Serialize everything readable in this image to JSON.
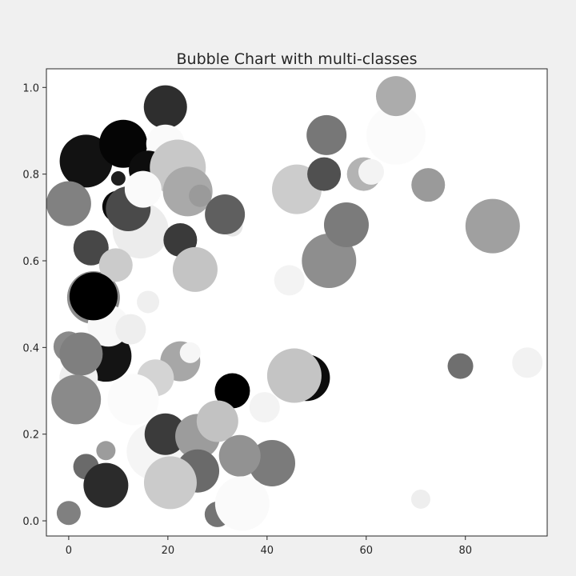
{
  "chart_data": {
    "type": "scatter",
    "title": "Bubble Chart with multi-classes",
    "xlabel": "",
    "ylabel": "",
    "xlim": [
      -4.5,
      96.5
    ],
    "ylim": [
      -0.035,
      1.043
    ],
    "xticks": [
      0,
      20,
      40,
      60,
      80
    ],
    "yticks": [
      0.0,
      0.2,
      0.4,
      0.6,
      0.8,
      1.0
    ],
    "xtick_labels": [
      "0",
      "20",
      "40",
      "60",
      "80"
    ],
    "ytick_labels": [
      "0.0",
      "0.2",
      "0.4",
      "0.6",
      "0.8",
      "1.0"
    ],
    "grid": false,
    "legend": "none",
    "points": [
      {
        "x": 66,
        "y": 0.89,
        "r": 37,
        "color": "#fbfbfb"
      },
      {
        "x": 7.5,
        "y": 0.38,
        "r": 32,
        "color": "#141414"
      },
      {
        "x": 2,
        "y": 0.33,
        "r": 24,
        "color": "#efefef"
      },
      {
        "x": 5,
        "y": 0.515,
        "r": 33,
        "color": "#8e8e8e"
      },
      {
        "x": 14.5,
        "y": 0.67,
        "r": 35,
        "color": "#ececec"
      },
      {
        "x": 17.5,
        "y": 0.16,
        "r": 36,
        "color": "#f5f5f5"
      },
      {
        "x": 19.5,
        "y": 0.955,
        "r": 27,
        "color": "#2e2e2e"
      },
      {
        "x": 3.5,
        "y": 0.83,
        "r": 33,
        "color": "#121212"
      },
      {
        "x": 11,
        "y": 0.87,
        "r": 30,
        "color": "#050505"
      },
      {
        "x": 19.5,
        "y": 0.87,
        "r": 24,
        "color": "#fafafa"
      },
      {
        "x": 16,
        "y": 0.81,
        "r": 24,
        "color": "#0d0d0d"
      },
      {
        "x": 22,
        "y": 0.815,
        "r": 35,
        "color": "#c8c8c8"
      },
      {
        "x": 10,
        "y": 0.79,
        "r": 9,
        "color": "#1e1e1e"
      },
      {
        "x": 10,
        "y": 0.725,
        "r": 20,
        "color": "#0a0a0a"
      },
      {
        "x": 12,
        "y": 0.72,
        "r": 28,
        "color": "#4a4a4a"
      },
      {
        "x": 15,
        "y": 0.765,
        "r": 23,
        "color": "#fafafa"
      },
      {
        "x": 24,
        "y": 0.76,
        "r": 31,
        "color": "#a9a9a9"
      },
      {
        "x": 26.5,
        "y": 0.75,
        "r": 14,
        "color": "#9a9a9a"
      },
      {
        "x": 33,
        "y": 0.68,
        "r": 13,
        "color": "#e6e6e6"
      },
      {
        "x": 31.5,
        "y": 0.707,
        "r": 25,
        "color": "#5f5f5f"
      },
      {
        "x": 0,
        "y": 0.732,
        "r": 28,
        "color": "#818181"
      },
      {
        "x": 4.5,
        "y": 0.63,
        "r": 22,
        "color": "#474747"
      },
      {
        "x": 22.5,
        "y": 0.648,
        "r": 21,
        "color": "#3a3a3a"
      },
      {
        "x": 9.5,
        "y": 0.59,
        "r": 21,
        "color": "#cbcbcb"
      },
      {
        "x": 25.5,
        "y": 0.58,
        "r": 28,
        "color": "#c4c4c4"
      },
      {
        "x": 8,
        "y": 0.45,
        "r": 26,
        "color": "#f8f8f8"
      },
      {
        "x": 5,
        "y": 0.518,
        "r": 30,
        "color": "#000000"
      },
      {
        "x": 16,
        "y": 0.505,
        "r": 14,
        "color": "#efefef"
      },
      {
        "x": 12.5,
        "y": 0.442,
        "r": 19,
        "color": "#eeeeee"
      },
      {
        "x": 0,
        "y": 0.402,
        "r": 19,
        "color": "#8a8a8a"
      },
      {
        "x": 2.5,
        "y": 0.385,
        "r": 27,
        "color": "#7f7f7f"
      },
      {
        "x": 22.5,
        "y": 0.368,
        "r": 25,
        "color": "#a7a7a7"
      },
      {
        "x": 24.5,
        "y": 0.388,
        "r": 13,
        "color": "#f6f6f6"
      },
      {
        "x": 17.5,
        "y": 0.33,
        "r": 23,
        "color": "#d4d4d4"
      },
      {
        "x": 13,
        "y": 0.28,
        "r": 32,
        "color": "#fbfbfb"
      },
      {
        "x": 1.5,
        "y": 0.28,
        "r": 31,
        "color": "#8a8a8a"
      },
      {
        "x": 19.5,
        "y": 0.2,
        "r": 26,
        "color": "#3b3b3b"
      },
      {
        "x": 26,
        "y": 0.195,
        "r": 28,
        "color": "#9c9c9c"
      },
      {
        "x": 33,
        "y": 0.3,
        "r": 22,
        "color": "#000000"
      },
      {
        "x": 30,
        "y": 0.23,
        "r": 26,
        "color": "#c2c2c2"
      },
      {
        "x": 39.5,
        "y": 0.262,
        "r": 19,
        "color": "#f3f3f3"
      },
      {
        "x": 48,
        "y": 0.33,
        "r": 29,
        "color": "#0c0c0c"
      },
      {
        "x": 45.5,
        "y": 0.335,
        "r": 34,
        "color": "#c4c4c4"
      },
      {
        "x": 46,
        "y": 0.765,
        "r": 31,
        "color": "#cccccc"
      },
      {
        "x": 44.5,
        "y": 0.555,
        "r": 19,
        "color": "#f3f3f3"
      },
      {
        "x": 52.5,
        "y": 0.6,
        "r": 34,
        "color": "#8e8e8e"
      },
      {
        "x": 56,
        "y": 0.683,
        "r": 28,
        "color": "#7b7b7b"
      },
      {
        "x": 51.5,
        "y": 0.8,
        "r": 21,
        "color": "#505050"
      },
      {
        "x": 52,
        "y": 0.89,
        "r": 25,
        "color": "#777777"
      },
      {
        "x": 59.5,
        "y": 0.8,
        "r": 21,
        "color": "#b3b3b3"
      },
      {
        "x": 61,
        "y": 0.805,
        "r": 16,
        "color": "#f3f3f3"
      },
      {
        "x": 66,
        "y": 0.98,
        "r": 25,
        "color": "#acacac"
      },
      {
        "x": 72.5,
        "y": 0.775,
        "r": 21,
        "color": "#9a9a9a"
      },
      {
        "x": 85.5,
        "y": 0.68,
        "r": 34,
        "color": "#a0a0a0"
      },
      {
        "x": 79,
        "y": 0.357,
        "r": 16,
        "color": "#6f6f6f"
      },
      {
        "x": 92.5,
        "y": 0.365,
        "r": 19,
        "color": "#f2f2f2"
      },
      {
        "x": 71,
        "y": 0.05,
        "r": 12,
        "color": "#eeeeee"
      },
      {
        "x": 3.5,
        "y": 0.125,
        "r": 16,
        "color": "#6a6a6a"
      },
      {
        "x": 7.5,
        "y": 0.162,
        "r": 12,
        "color": "#9c9c9c"
      },
      {
        "x": 7.5,
        "y": 0.082,
        "r": 28,
        "color": "#2b2b2b"
      },
      {
        "x": 0,
        "y": 0.018,
        "r": 15,
        "color": "#808080"
      },
      {
        "x": 26,
        "y": 0.115,
        "r": 27,
        "color": "#6a6a6a"
      },
      {
        "x": 41,
        "y": 0.133,
        "r": 29,
        "color": "#7b7b7b"
      },
      {
        "x": 34.5,
        "y": 0.15,
        "r": 26,
        "color": "#929292"
      },
      {
        "x": 30,
        "y": 0.015,
        "r": 16,
        "color": "#747474"
      },
      {
        "x": 20.5,
        "y": 0.088,
        "r": 33,
        "color": "#cbcbcb"
      },
      {
        "x": 35,
        "y": 0.04,
        "r": 34,
        "color": "#fafafa"
      }
    ]
  }
}
